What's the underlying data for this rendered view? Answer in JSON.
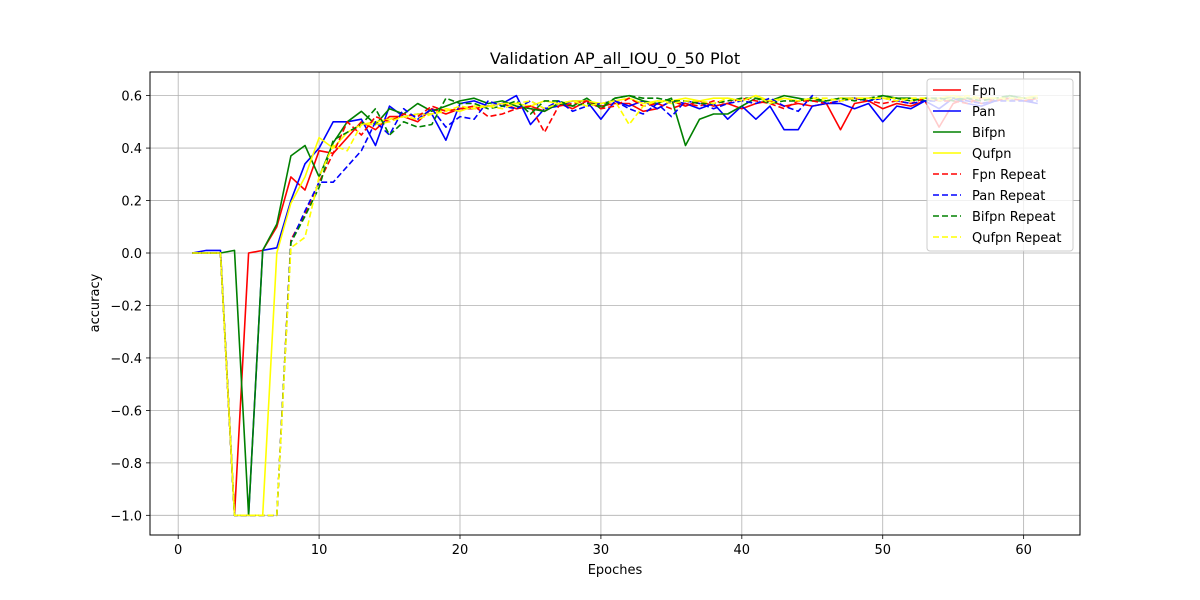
{
  "chart_data": {
    "type": "line",
    "title": "Validation  AP_all_IOU_0_50 Plot",
    "xlabel": "Epoches",
    "ylabel": "accuracy",
    "xlim": [
      -2,
      64
    ],
    "ylim": [
      -1.075,
      0.69
    ],
    "xticks": [
      0,
      10,
      20,
      30,
      40,
      50,
      60
    ],
    "yticks": [
      -1.0,
      -0.8,
      -0.6,
      -0.4,
      -0.2,
      0.0,
      0.2,
      0.4,
      0.6
    ],
    "ytick_labels": [
      "−1.0",
      "−0.8",
      "−0.6",
      "−0.4",
      "−0.2",
      "0.0",
      "0.2",
      "0.4",
      "0.6"
    ],
    "grid": true,
    "legend_position": "upper-right",
    "series": [
      {
        "name": "Fpn",
        "color": "#ff0000",
        "dash": "solid",
        "x": [
          1,
          2,
          3,
          4,
          5,
          6,
          7,
          8,
          9,
          10,
          11,
          12,
          13,
          14,
          15,
          16,
          17,
          18,
          19,
          20,
          21,
          22,
          23,
          24,
          25,
          26,
          27,
          28,
          29,
          30,
          31,
          32,
          33,
          34,
          35,
          36,
          37,
          38,
          39,
          40,
          41,
          42,
          43,
          44,
          45,
          46,
          47,
          48,
          49,
          50,
          51,
          52,
          53,
          54,
          55,
          56,
          57,
          58,
          59,
          60,
          61
        ],
        "y": [
          0,
          0,
          0,
          -1,
          0,
          0.01,
          0.1,
          0.29,
          0.24,
          0.39,
          0.38,
          0.44,
          0.5,
          0.47,
          0.52,
          0.52,
          0.5,
          0.55,
          0.53,
          0.55,
          0.55,
          0.56,
          0.57,
          0.55,
          0.56,
          0.54,
          0.57,
          0.55,
          0.58,
          0.56,
          0.57,
          0.57,
          0.54,
          0.55,
          0.58,
          0.56,
          0.58,
          0.56,
          0.57,
          0.55,
          0.57,
          0.58,
          0.56,
          0.57,
          0.56,
          0.57,
          0.47,
          0.57,
          0.58,
          0.55,
          0.57,
          0.56,
          0.58,
          0.48,
          0.57,
          0.59,
          0.57,
          0.58,
          0.59,
          0.58,
          0.59
        ]
      },
      {
        "name": "Pan",
        "color": "#0000ff",
        "dash": "solid",
        "x": [
          1,
          2,
          3,
          4,
          5,
          6,
          7,
          8,
          9,
          10,
          11,
          12,
          13,
          14,
          15,
          16,
          17,
          18,
          19,
          20,
          21,
          22,
          23,
          24,
          25,
          26,
          27,
          28,
          29,
          30,
          31,
          32,
          33,
          34,
          35,
          36,
          37,
          38,
          39,
          40,
          41,
          42,
          43,
          44,
          45,
          46,
          47,
          48,
          49,
          50,
          51,
          52,
          53,
          54,
          55,
          56,
          57,
          58,
          59,
          60,
          61
        ],
        "y": [
          0,
          0.01,
          0.01,
          -1,
          -1,
          0.01,
          0.02,
          0.2,
          0.34,
          0.4,
          0.5,
          0.5,
          0.51,
          0.41,
          0.56,
          0.52,
          0.53,
          0.53,
          0.43,
          0.57,
          0.58,
          0.56,
          0.57,
          0.6,
          0.49,
          0.55,
          0.56,
          0.58,
          0.58,
          0.51,
          0.58,
          0.56,
          0.58,
          0.55,
          0.58,
          0.57,
          0.55,
          0.57,
          0.51,
          0.56,
          0.51,
          0.56,
          0.47,
          0.47,
          0.56,
          0.57,
          0.57,
          0.55,
          0.57,
          0.5,
          0.56,
          0.55,
          0.58,
          0.55,
          0.59,
          0.57,
          0.56,
          0.58,
          0.59,
          0.58,
          0.57
        ]
      },
      {
        "name": "Bifpn",
        "color": "#008000",
        "dash": "solid",
        "x": [
          1,
          2,
          3,
          4,
          5,
          6,
          7,
          8,
          9,
          10,
          11,
          12,
          13,
          14,
          15,
          16,
          17,
          18,
          19,
          20,
          21,
          22,
          23,
          24,
          25,
          26,
          27,
          28,
          29,
          30,
          31,
          32,
          33,
          34,
          35,
          36,
          37,
          38,
          39,
          40,
          41,
          42,
          43,
          44,
          45,
          46,
          47,
          48,
          49,
          50,
          51,
          52,
          53,
          54,
          55,
          56,
          57,
          58,
          59,
          60,
          61
        ],
        "y": [
          0,
          0,
          0,
          0.01,
          -1,
          0.01,
          0.11,
          0.37,
          0.41,
          0.29,
          0.42,
          0.5,
          0.54,
          0.49,
          0.55,
          0.53,
          0.57,
          0.54,
          0.56,
          0.58,
          0.59,
          0.57,
          0.58,
          0.56,
          0.55,
          0.54,
          0.57,
          0.56,
          0.59,
          0.55,
          0.59,
          0.6,
          0.58,
          0.57,
          0.59,
          0.41,
          0.51,
          0.53,
          0.53,
          0.56,
          0.59,
          0.58,
          0.6,
          0.59,
          0.58,
          0.58,
          0.59,
          0.59,
          0.58,
          0.6,
          0.59,
          0.59,
          0.58,
          0.59,
          0.59,
          0.59,
          0.59,
          0.58,
          0.6,
          0.59,
          0.59
        ]
      },
      {
        "name": "Qufpn",
        "color": "#ffff00",
        "dash": "solid",
        "x": [
          1,
          2,
          3,
          4,
          5,
          6,
          7,
          8,
          9,
          10,
          11,
          12,
          13,
          14,
          15,
          16,
          17,
          18,
          19,
          20,
          21,
          22,
          23,
          24,
          25,
          26,
          27,
          28,
          29,
          30,
          31,
          32,
          33,
          34,
          35,
          36,
          37,
          38,
          39,
          40,
          41,
          42,
          43,
          44,
          45,
          46,
          47,
          48,
          49,
          50,
          51,
          52,
          53,
          54,
          55,
          56,
          57,
          58,
          59,
          60,
          61
        ],
        "y": [
          0,
          0,
          0,
          -1,
          -1,
          -1,
          0,
          0.19,
          0.29,
          0.44,
          0.4,
          0.46,
          0.49,
          0.5,
          0.51,
          0.52,
          0.53,
          0.53,
          0.55,
          0.54,
          0.56,
          0.56,
          0.57,
          0.57,
          0.56,
          0.58,
          0.57,
          0.58,
          0.58,
          0.57,
          0.58,
          0.59,
          0.57,
          0.58,
          0.58,
          0.59,
          0.58,
          0.59,
          0.59,
          0.58,
          0.6,
          0.58,
          0.59,
          0.58,
          0.59,
          0.58,
          0.59,
          0.59,
          0.59,
          0.59,
          0.59,
          0.58,
          0.59,
          0.59,
          0.6,
          0.59,
          0.59,
          0.59,
          0.58,
          0.59,
          0.6
        ]
      },
      {
        "name": "Fpn Repeat",
        "color": "#ff0000",
        "dash": "dashed",
        "x": [
          1,
          2,
          3,
          4,
          5,
          6,
          7,
          8,
          9,
          10,
          11,
          12,
          13,
          14,
          15,
          16,
          17,
          18,
          19,
          20,
          21,
          22,
          23,
          24,
          25,
          26,
          27,
          28,
          29,
          30,
          31,
          32,
          33,
          34,
          35,
          36,
          37,
          38,
          39,
          40,
          41,
          42,
          43,
          44,
          45,
          46,
          47,
          48,
          49,
          50,
          51,
          52,
          53,
          54,
          55,
          56,
          57,
          58,
          59,
          60,
          61
        ],
        "y": [
          0,
          0,
          0,
          -1,
          -1,
          -1,
          -1,
          0.05,
          0.15,
          0.27,
          0.38,
          0.5,
          0.45,
          0.52,
          0.5,
          0.53,
          0.52,
          0.56,
          0.54,
          0.55,
          0.56,
          0.52,
          0.53,
          0.55,
          0.56,
          0.46,
          0.56,
          0.57,
          0.58,
          0.55,
          0.56,
          0.59,
          0.56,
          0.57,
          0.55,
          0.57,
          0.56,
          0.58,
          0.57,
          0.59,
          0.58,
          0.57,
          0.55,
          0.58,
          0.58,
          0.57,
          0.58,
          0.59,
          0.58,
          0.57,
          0.58,
          0.57,
          0.59,
          0.58,
          0.58,
          0.57,
          0.59,
          0.58,
          0.59,
          0.58,
          0.59
        ]
      },
      {
        "name": "Pan Repeat",
        "color": "#0000ff",
        "dash": "dashed",
        "x": [
          1,
          2,
          3,
          4,
          5,
          6,
          7,
          8,
          9,
          10,
          11,
          12,
          13,
          14,
          15,
          16,
          17,
          18,
          19,
          20,
          21,
          22,
          23,
          24,
          25,
          26,
          27,
          28,
          29,
          30,
          31,
          32,
          33,
          34,
          35,
          36,
          37,
          38,
          39,
          40,
          41,
          42,
          43,
          44,
          45,
          46,
          47,
          48,
          49,
          50,
          51,
          52,
          53,
          54,
          55,
          56,
          57,
          58,
          59,
          60,
          61
        ],
        "y": [
          0,
          0,
          0,
          -1,
          -1,
          -1,
          -1,
          0.04,
          0.16,
          0.27,
          0.27,
          0.33,
          0.39,
          0.5,
          0.45,
          0.55,
          0.51,
          0.55,
          0.48,
          0.52,
          0.51,
          0.58,
          0.56,
          0.55,
          0.58,
          0.55,
          0.58,
          0.54,
          0.56,
          0.57,
          0.58,
          0.55,
          0.53,
          0.57,
          0.52,
          0.58,
          0.57,
          0.55,
          0.57,
          0.58,
          0.57,
          0.59,
          0.56,
          0.54,
          0.6,
          0.57,
          0.58,
          0.59,
          0.58,
          0.59,
          0.58,
          0.57,
          0.58,
          0.58,
          0.59,
          0.58,
          0.57,
          0.58,
          0.58,
          0.58,
          0.58
        ]
      },
      {
        "name": "Bifpn Repeat",
        "color": "#008000",
        "dash": "dashed",
        "x": [
          1,
          2,
          3,
          4,
          5,
          6,
          7,
          8,
          9,
          10,
          11,
          12,
          13,
          14,
          15,
          16,
          17,
          18,
          19,
          20,
          21,
          22,
          23,
          24,
          25,
          26,
          27,
          28,
          29,
          30,
          31,
          32,
          33,
          34,
          35,
          36,
          37,
          38,
          39,
          40,
          41,
          42,
          43,
          44,
          45,
          46,
          47,
          48,
          49,
          50,
          51,
          52,
          53,
          54,
          55,
          56,
          57,
          58,
          59,
          60,
          61
        ],
        "y": [
          0,
          0,
          0,
          -1,
          -1,
          -1,
          -1,
          0.04,
          0.14,
          0.25,
          0.43,
          0.46,
          0.49,
          0.55,
          0.45,
          0.5,
          0.48,
          0.49,
          0.59,
          0.57,
          0.57,
          0.55,
          0.56,
          0.58,
          0.53,
          0.58,
          0.58,
          0.56,
          0.57,
          0.56,
          0.59,
          0.6,
          0.59,
          0.59,
          0.58,
          0.58,
          0.57,
          0.57,
          0.58,
          0.59,
          0.59,
          0.57,
          0.58,
          0.58,
          0.59,
          0.58,
          0.59,
          0.58,
          0.59,
          0.6,
          0.59,
          0.58,
          0.59,
          0.59,
          0.58,
          0.59,
          0.58,
          0.59,
          0.6,
          0.59,
          0.59
        ]
      },
      {
        "name": "Qufpn Repeat",
        "color": "#ffff00",
        "dash": "dashed",
        "x": [
          1,
          2,
          3,
          4,
          5,
          6,
          7,
          8,
          9,
          10,
          11,
          12,
          13,
          14,
          15,
          16,
          17,
          18,
          19,
          20,
          21,
          22,
          23,
          24,
          25,
          26,
          27,
          28,
          29,
          30,
          31,
          32,
          33,
          34,
          35,
          36,
          37,
          38,
          39,
          40,
          41,
          42,
          43,
          44,
          45,
          46,
          47,
          48,
          49,
          50,
          51,
          52,
          53,
          54,
          55,
          56,
          57,
          58,
          59,
          60,
          61
        ],
        "y": [
          0,
          0,
          0,
          -1,
          -1,
          -1,
          -1,
          0.02,
          0.06,
          0.29,
          0.41,
          0.39,
          0.49,
          0.49,
          0.5,
          0.52,
          0.51,
          0.53,
          0.54,
          0.56,
          0.55,
          0.56,
          0.55,
          0.57,
          0.58,
          0.55,
          0.57,
          0.58,
          0.56,
          0.57,
          0.58,
          0.49,
          0.56,
          0.58,
          0.57,
          0.58,
          0.58,
          0.57,
          0.59,
          0.58,
          0.6,
          0.57,
          0.59,
          0.58,
          0.59,
          0.59,
          0.58,
          0.59,
          0.59,
          0.59,
          0.58,
          0.59,
          0.59,
          0.58,
          0.59,
          0.6,
          0.59,
          0.59,
          0.59,
          0.59,
          0.59
        ]
      }
    ]
  }
}
